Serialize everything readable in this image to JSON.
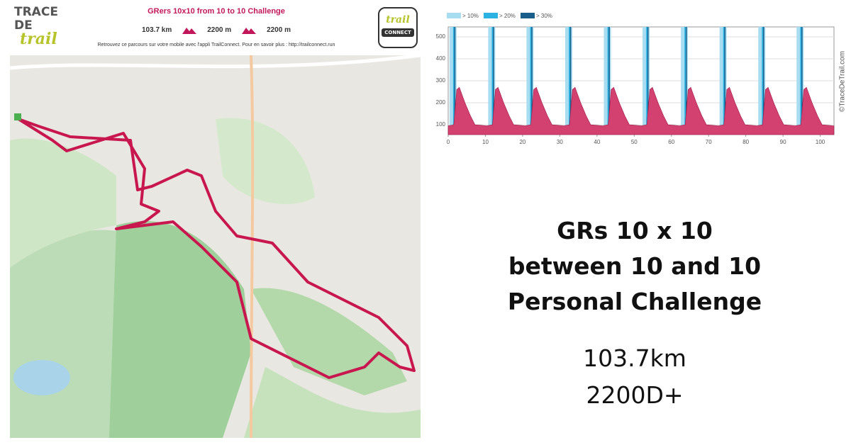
{
  "header": {
    "logo": [
      "TRACE",
      "DE",
      "trail"
    ],
    "title": "GRers 10x10 from 10 to 10 Challenge",
    "distance": "103.7 km",
    "ascent": "2200 m",
    "descent": "2200 m",
    "note": "Retrouvez ce parcours sur votre mobile avec l'appli TrailConnect. Pour en savoir plus : http://trailconnect.run",
    "badge": [
      "trail",
      "CONNECT"
    ]
  },
  "chart_data": {
    "type": "area",
    "color": "#d2416f",
    "x": [
      0,
      1.5,
      2.3,
      3,
      4.5,
      6,
      7.2,
      10.4,
      11.9,
      12.7,
      13.4,
      14.9,
      16.4,
      17.6,
      20.7,
      22.2,
      23,
      23.7,
      25.2,
      26.7,
      27.9,
      31.1,
      32.6,
      33.4,
      34.1,
      35.6,
      37.1,
      38.3,
      41.5,
      43,
      43.8,
      44.5,
      46,
      47.5,
      48.7,
      51.9,
      53.4,
      54.2,
      54.9,
      56.4,
      57.9,
      59.1,
      62.2,
      63.7,
      64.5,
      65.2,
      66.7,
      68.2,
      69.4,
      72.6,
      74.1,
      74.9,
      75.6,
      77.1,
      78.6,
      79.8,
      83,
      84.5,
      85.3,
      86,
      87.5,
      89,
      90.2,
      93.3,
      94.8,
      95.6,
      96.3,
      97.8,
      99.3,
      100.5,
      103.7
    ],
    "values": [
      95,
      100,
      260,
      270,
      200,
      140,
      100,
      95,
      100,
      260,
      270,
      200,
      140,
      100,
      95,
      100,
      260,
      270,
      200,
      140,
      100,
      95,
      100,
      260,
      270,
      200,
      140,
      100,
      95,
      100,
      260,
      270,
      200,
      140,
      100,
      95,
      100,
      260,
      270,
      200,
      140,
      100,
      95,
      100,
      260,
      270,
      200,
      140,
      100,
      95,
      100,
      260,
      270,
      200,
      140,
      100,
      95,
      100,
      260,
      270,
      200,
      140,
      100,
      95,
      100,
      260,
      270,
      200,
      140,
      100,
      95
    ],
    "series": [
      {
        "name": "> 10%",
        "color": "#a8dcf0",
        "x": [
          1.3,
          11.7,
          22.0,
          32.4,
          42.8,
          53.2,
          63.5,
          73.9,
          84.3,
          94.6
        ]
      },
      {
        "name": "> 20%",
        "color": "#2cb2e2",
        "x": [
          1.6,
          12.0,
          22.3,
          32.7,
          43.1,
          53.5,
          63.8,
          74.2,
          84.6,
          94.9
        ]
      },
      {
        "name": "> 30%",
        "color": "#1a5e8c",
        "x": [
          1.8,
          12.2,
          22.5,
          32.9,
          43.3,
          53.7,
          64.0,
          74.4,
          84.8,
          95.1
        ]
      }
    ],
    "xlim": [
      0,
      103.7
    ],
    "ylim": [
      55,
      545
    ],
    "xticks": [
      0,
      10,
      20,
      30,
      40,
      50,
      60,
      70,
      80,
      90,
      100
    ],
    "yticks": [
      100,
      200,
      300,
      400,
      500
    ],
    "grid": true,
    "credit": "©TraceDeTrail.com"
  },
  "headline": [
    "GRs 10 x 10",
    "between 10 and 10",
    "Personal Challenge"
  ],
  "summary": [
    "103.7km",
    "2200D+"
  ]
}
